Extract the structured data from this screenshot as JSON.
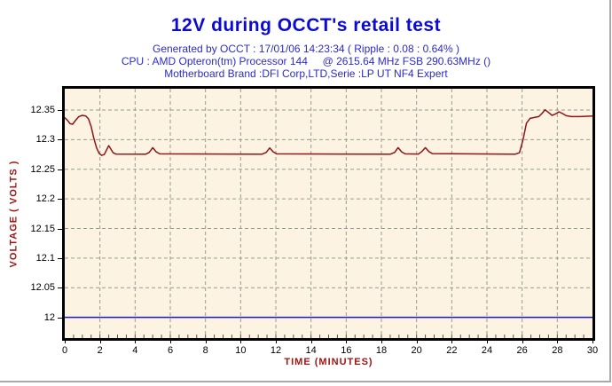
{
  "window": {
    "background": "#ffffff",
    "edge_color": "#a9a9a9"
  },
  "header": {
    "title": "12V during OCCT's retail test",
    "title_color": "#0a0ad4",
    "subtitle_color": "#2b2bc8",
    "subtitles": [
      "Generated by OCCT : 17/01/06 14:23:34 ( Ripple : 0.08 : 0.64% )",
      "CPU : AMD Opteron(tm) Processor 144     @ 2615.64 MHz FSB 290.63MHz ()",
      "Motherboard Brand :DFI Corp,LTD,Serie :LP UT NF4 Expert"
    ]
  },
  "chart_data": {
    "type": "line",
    "title": "12V during OCCT's retail test",
    "xlabel": "TIME (MINUTES)",
    "ylabel": "VOLTAGE ( VOLTS )",
    "xlim": [
      0,
      30
    ],
    "ylim": [
      11.965,
      12.386
    ],
    "x_ticks": [
      0,
      2,
      4,
      6,
      8,
      10,
      12,
      14,
      16,
      18,
      20,
      22,
      24,
      26,
      28,
      30
    ],
    "x_minor_tick_step": 0.5,
    "y_ticks": [
      12.35,
      12.3,
      12.25,
      12.2,
      12.15,
      12.1,
      12.05,
      12
    ],
    "grid": "dashed",
    "grid_color": "#9a9a92",
    "plot_bg": "#fcf3e2",
    "axis_color": "#000000",
    "axis_label_color": "#a31414",
    "tick_label_color": "#000000",
    "legend": "none",
    "ref_line": {
      "value": 12.0,
      "color": "#1515e8"
    },
    "series": [
      {
        "name": "12V",
        "color": "#8c1616",
        "points": [
          [
            0,
            12.337
          ],
          [
            0.15,
            12.333
          ],
          [
            0.3,
            12.327
          ],
          [
            0.45,
            12.326
          ],
          [
            0.6,
            12.332
          ],
          [
            0.8,
            12.339
          ],
          [
            1.0,
            12.341
          ],
          [
            1.2,
            12.34
          ],
          [
            1.35,
            12.335
          ],
          [
            1.5,
            12.322
          ],
          [
            1.65,
            12.303
          ],
          [
            1.8,
            12.287
          ],
          [
            1.95,
            12.277
          ],
          [
            2.1,
            12.2735
          ],
          [
            2.25,
            12.275
          ],
          [
            2.4,
            12.284
          ],
          [
            2.5,
            12.29
          ],
          [
            2.6,
            12.285
          ],
          [
            2.75,
            12.278
          ],
          [
            2.9,
            12.2758
          ],
          [
            4.6,
            12.2755
          ],
          [
            4.8,
            12.2785
          ],
          [
            5.0,
            12.2865
          ],
          [
            5.2,
            12.2795
          ],
          [
            5.4,
            12.276
          ],
          [
            11.2,
            12.2755
          ],
          [
            11.45,
            12.2785
          ],
          [
            11.65,
            12.286
          ],
          [
            11.85,
            12.2795
          ],
          [
            12.05,
            12.276
          ],
          [
            18.5,
            12.2755
          ],
          [
            18.75,
            12.2785
          ],
          [
            18.95,
            12.2865
          ],
          [
            19.15,
            12.2795
          ],
          [
            19.35,
            12.276
          ],
          [
            20.1,
            12.2757
          ],
          [
            20.3,
            12.28
          ],
          [
            20.5,
            12.2865
          ],
          [
            20.7,
            12.28
          ],
          [
            20.9,
            12.2765
          ],
          [
            25.6,
            12.2755
          ],
          [
            25.85,
            12.278
          ],
          [
            26.05,
            12.3
          ],
          [
            26.25,
            12.328
          ],
          [
            26.45,
            12.336
          ],
          [
            26.7,
            12.3375
          ],
          [
            26.95,
            12.339
          ],
          [
            27.15,
            12.345
          ],
          [
            27.3,
            12.3505
          ],
          [
            27.5,
            12.346
          ],
          [
            27.7,
            12.341
          ],
          [
            27.9,
            12.3435
          ],
          [
            28.1,
            12.347
          ],
          [
            28.3,
            12.344
          ],
          [
            28.5,
            12.3405
          ],
          [
            28.8,
            12.339
          ],
          [
            29.3,
            12.339
          ],
          [
            29.7,
            12.3395
          ],
          [
            30,
            12.34
          ]
        ]
      }
    ]
  }
}
